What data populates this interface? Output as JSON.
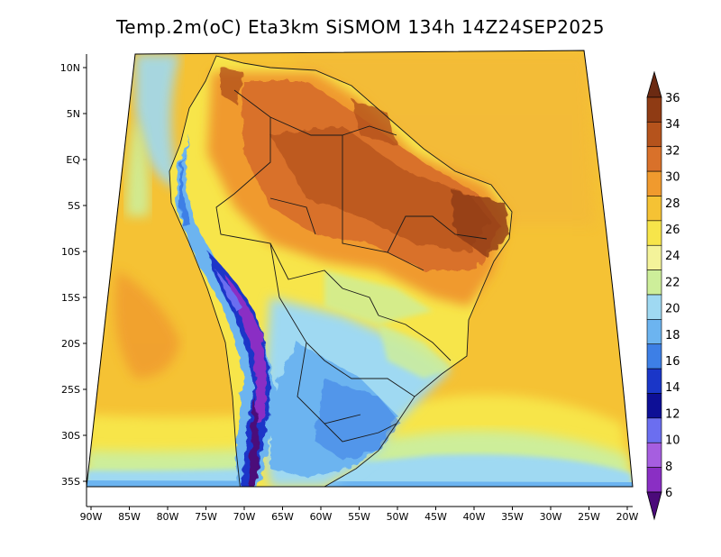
{
  "title": "Temp.2m(oC) Eta3km SiSMOM 134h 14Z24SEP2025",
  "lat_ticks": [
    "10N",
    "5N",
    "EQ",
    "5S",
    "10S",
    "15S",
    "20S",
    "25S",
    "30S",
    "35S"
  ],
  "lon_ticks": [
    "90W",
    "85W",
    "80W",
    "75W",
    "70W",
    "65W",
    "60W",
    "55W",
    "50W",
    "45W",
    "40W",
    "35W",
    "30W",
    "25W",
    "20W"
  ],
  "colorbar": {
    "labels": [
      "36",
      "34",
      "32",
      "30",
      "28",
      "26",
      "24",
      "22",
      "20",
      "18",
      "16",
      "14",
      "12",
      "10",
      "8",
      "6"
    ],
    "colors": [
      "#6b2a12",
      "#8f3b14",
      "#b5531c",
      "#d9712a",
      "#f09a2e",
      "#f5c234",
      "#f7e54a",
      "#f4f39a",
      "#cdee9a",
      "#9fd9f2",
      "#6cb4f0",
      "#3d7fe6",
      "#1a36c8",
      "#0d0f96",
      "#6b6ef0",
      "#a65ee0",
      "#8a2fc4",
      "#4b0a7a"
    ]
  }
}
